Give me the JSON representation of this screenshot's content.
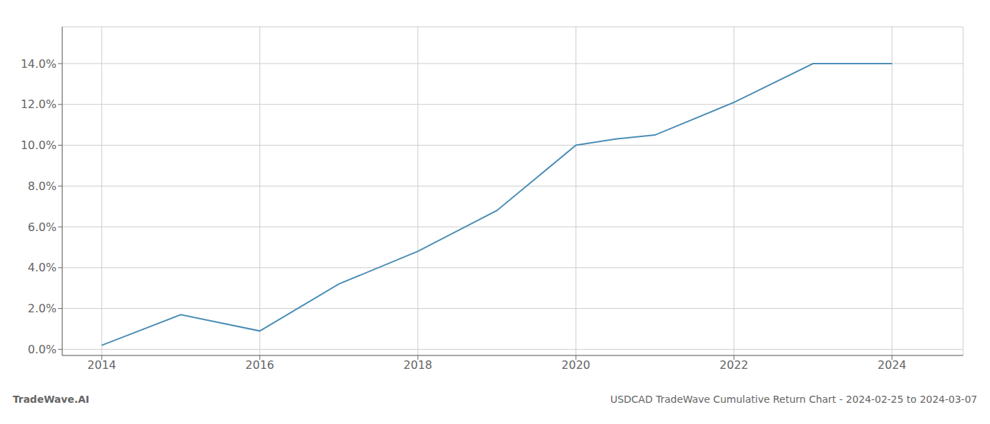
{
  "chart_data": {
    "type": "line",
    "x": [
      2014,
      2015,
      2016,
      2017,
      2018,
      2019,
      2020,
      2020.5,
      2021,
      2022,
      2023,
      2024
    ],
    "values": [
      0.002,
      0.017,
      0.009,
      0.032,
      0.048,
      0.068,
      0.1,
      0.103,
      0.105,
      0.121,
      0.14,
      0.14
    ],
    "color": "#4a8db5",
    "xlim": [
      2013.5,
      2024.9
    ],
    "xticks": [
      2014,
      2016,
      2018,
      2020,
      2022,
      2024
    ],
    "ylim": [
      -0.003,
      0.158
    ],
    "yticks": [
      {
        "value": 0.0,
        "label": "0.0%"
      },
      {
        "value": 0.02,
        "label": "2.0%"
      },
      {
        "value": 0.04,
        "label": "4.0%"
      },
      {
        "value": 0.06,
        "label": "6.0%"
      },
      {
        "value": 0.08,
        "label": "8.0%"
      },
      {
        "value": 0.1,
        "label": "10.0%"
      },
      {
        "value": 0.12,
        "label": "12.0%"
      },
      {
        "value": 0.14,
        "label": "14.0%"
      }
    ],
    "grid": true,
    "annotations": [
      "TradeWave.AI",
      "USDCAD TradeWave Cumulative Return Chart - 2024-02-25 to 2024-03-07"
    ]
  }
}
